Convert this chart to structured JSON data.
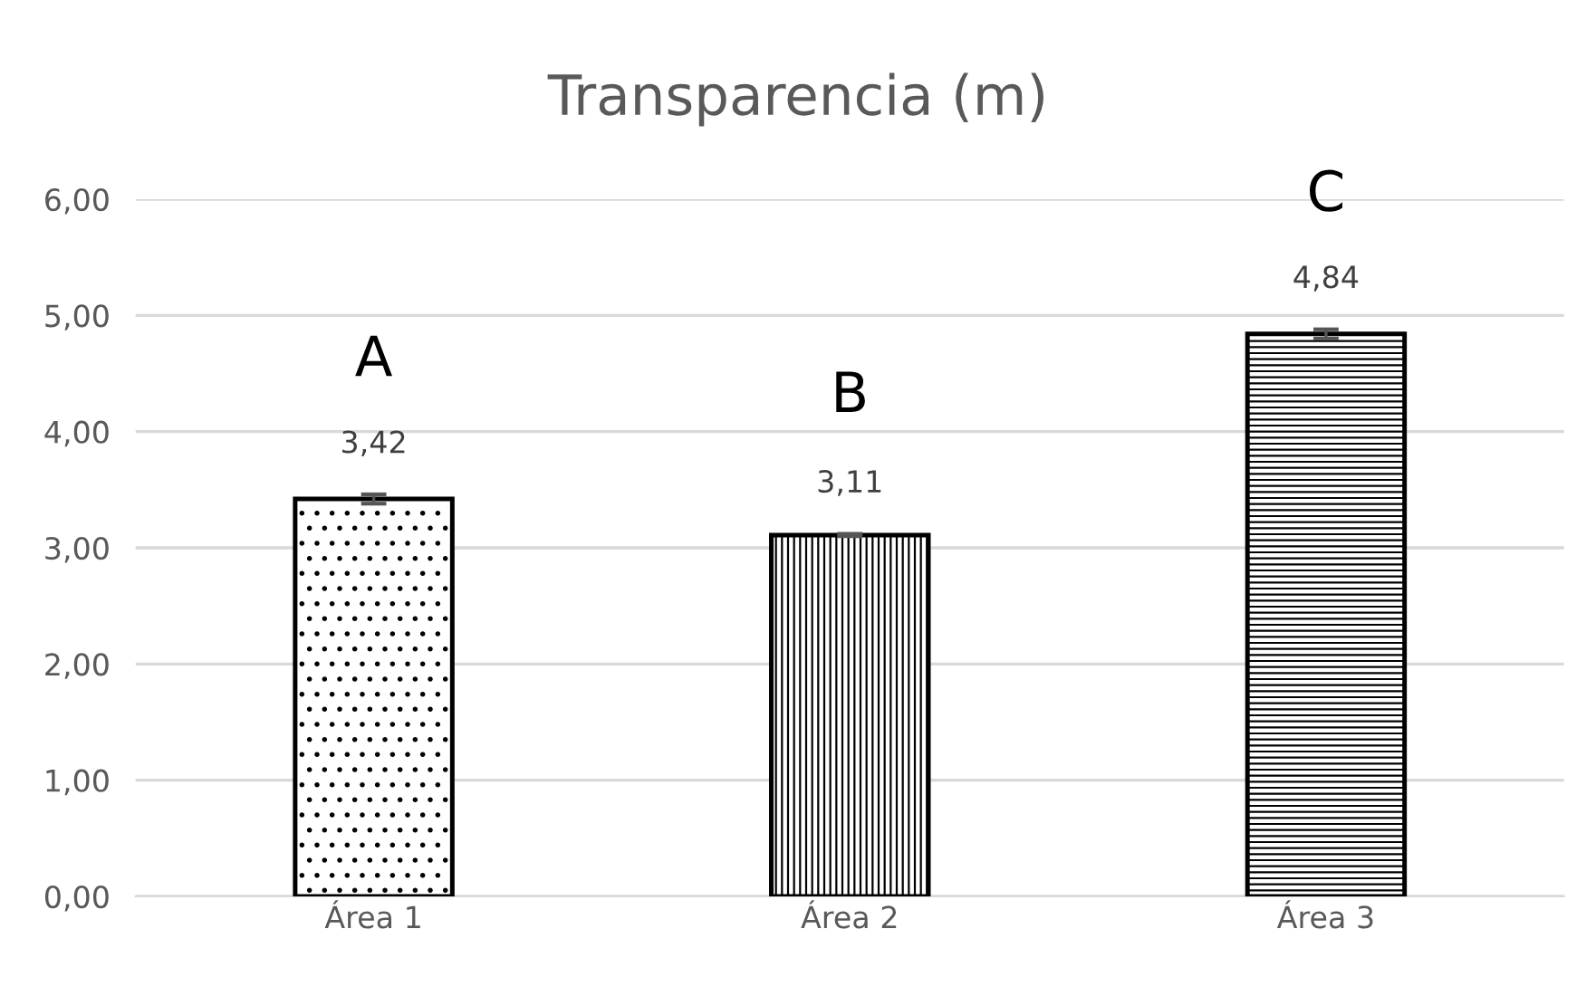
{
  "chart_data": {
    "type": "bar",
    "title": "Transparencia (m)",
    "categories": [
      "Área 1",
      "Área 2",
      "Área 3"
    ],
    "values": [
      3.42,
      3.11,
      4.84
    ],
    "errors": [
      0.04,
      0.01,
      0.04
    ],
    "colors": [
      "#000000",
      "#000000",
      "#000000"
    ],
    "data_labels": true,
    "value_labels": [
      "3,42",
      "3,11",
      "4,84"
    ],
    "ylim": [
      0,
      6
    ],
    "yticks": [
      {
        "value": 0,
        "label": "0,00"
      },
      {
        "value": 1,
        "label": "1,00"
      },
      {
        "value": 2,
        "label": "2,00"
      },
      {
        "value": 3,
        "label": "3,00"
      },
      {
        "value": 4,
        "label": "4,00"
      },
      {
        "value": 5,
        "label": "5,00"
      },
      {
        "value": 6,
        "label": "6,00"
      }
    ],
    "grid": "y",
    "annotations": [
      "A",
      "B",
      "C"
    ]
  }
}
